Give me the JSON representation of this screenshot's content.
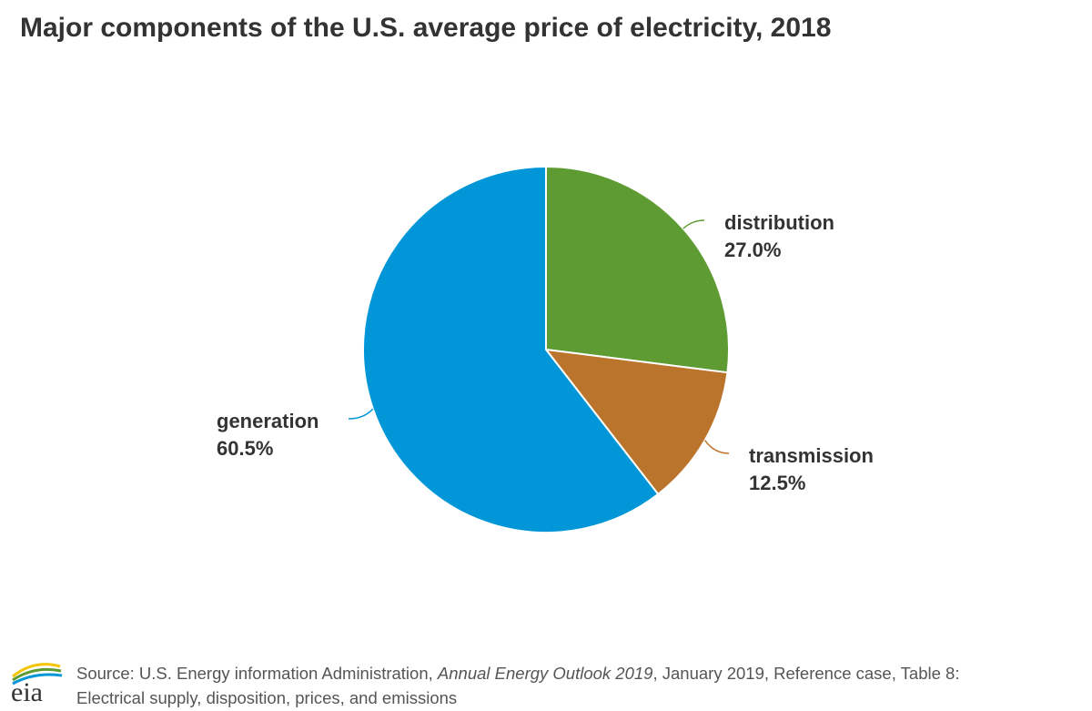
{
  "title": "Major components of the U.S. average price of electricity, 2018",
  "chart_data": {
    "type": "pie",
    "title": "Major components of the U.S. average price of electricity, 2018",
    "slices": [
      {
        "label": "distribution",
        "value": 27.0,
        "value_label": "27.0%",
        "color": "#5e9b33"
      },
      {
        "label": "transmission",
        "value": 12.5,
        "value_label": "12.5%",
        "color": "#bb742b"
      },
      {
        "label": "generation",
        "value": 60.5,
        "value_label": "60.5%",
        "color": "#0096d7"
      }
    ]
  },
  "footer": {
    "source_prefix": "Source: U.S. Energy information Administration, ",
    "source_publication": "Annual Energy Outlook 2019",
    "source_suffix": ", January 2019, Reference case, Table 8:",
    "source_line2": "Electrical supply, disposition, prices, and emissions"
  },
  "logo": {
    "text": "eia",
    "colors": [
      "#0096d7",
      "#5e9b33",
      "#f2c500"
    ]
  }
}
